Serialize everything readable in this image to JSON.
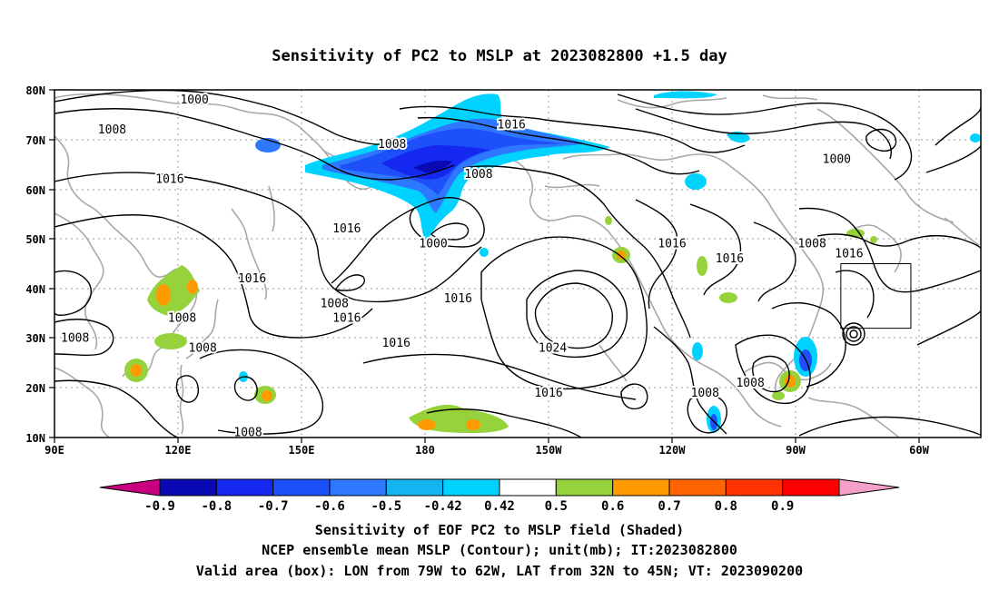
{
  "title": "Sensitivity of PC2 to MSLP at 2023082800 +1.5 day",
  "axes": {
    "lat_labels": [
      "80N",
      "70N",
      "60N",
      "50N",
      "40N",
      "30N",
      "20N",
      "10N"
    ],
    "lon_labels": [
      "90E",
      "120E",
      "150E",
      "180",
      "150W",
      "120W",
      "90W",
      "60W"
    ],
    "grid_lines": "dotted"
  },
  "contours": {
    "unit": "mb",
    "labels": [
      {
        "text": "1000",
        "lon": 124,
        "lat": 78
      },
      {
        "text": "1008",
        "lon": 104,
        "lat": 72
      },
      {
        "text": "1008",
        "lon": 172,
        "lat": 69
      },
      {
        "text": "1016",
        "lon": 201,
        "lat": 73
      },
      {
        "text": "1016",
        "lon": 118,
        "lat": 62
      },
      {
        "text": "1008",
        "lon": 193,
        "lat": 63
      },
      {
        "text": "1000",
        "lon": 182,
        "lat": 49
      },
      {
        "text": "1016",
        "lon": 161,
        "lat": 52
      },
      {
        "text": "1016",
        "lon": 188,
        "lat": 38
      },
      {
        "text": "1016",
        "lon": 138,
        "lat": 42
      },
      {
        "text": "1008",
        "lon": 158,
        "lat": 37
      },
      {
        "text": "1016",
        "lon": 161,
        "lat": 34
      },
      {
        "text": "1008",
        "lon": 121,
        "lat": 34
      },
      {
        "text": "1008",
        "lon": 95,
        "lat": 30
      },
      {
        "text": "1008",
        "lon": 126,
        "lat": 28
      },
      {
        "text": "1016",
        "lon": 173,
        "lat": 29
      },
      {
        "text": "1024",
        "lon": 211,
        "lat": 28
      },
      {
        "text": "1016",
        "lon": 210,
        "lat": 19
      },
      {
        "text": "1016",
        "lon": 240,
        "lat": 49
      },
      {
        "text": "1016",
        "lon": 254,
        "lat": 46
      },
      {
        "text": "1008",
        "lon": 274,
        "lat": 49
      },
      {
        "text": "1016",
        "lon": 283,
        "lat": 47
      },
      {
        "text": "1000",
        "lon": 280,
        "lat": 66
      },
      {
        "text": "1008",
        "lon": 248,
        "lat": 19
      },
      {
        "text": "1008",
        "lon": 259,
        "lat": 21
      },
      {
        "text": "1008",
        "lon": 137,
        "lat": 11
      }
    ]
  },
  "shading": {
    "field": "Sensitivity of EOF PC2 to MSLP field",
    "levels": [
      "-0.9",
      "-0.8",
      "-0.7",
      "-0.6",
      "-0.5",
      "-0.42",
      "0.42",
      "0.5",
      "0.6",
      "0.7",
      "0.8",
      "0.9"
    ],
    "colors": [
      "#c8007f",
      "#0a0ab4",
      "#1428f0",
      "#1e50fa",
      "#2d78ff",
      "#14b4f0",
      "#00d2ff",
      "#ffffff",
      "#96d23c",
      "#ff9b00",
      "#ff6400",
      "#ff3200",
      "#ff0000",
      "#f5a0c8"
    ]
  },
  "valid_box": {
    "lon_min": -79,
    "lon_max": -62,
    "lat_min": 32,
    "lat_max": 45
  },
  "footer": {
    "line1": "Sensitivity of EOF PC2 to MSLP field (Shaded)",
    "line2": "NCEP ensemble mean MSLP (Contour); unit(mb); IT:2023082800",
    "line3": "Valid area (box): LON from 79W to 62W, LAT from 32N to 45N; VT: 2023090200"
  }
}
